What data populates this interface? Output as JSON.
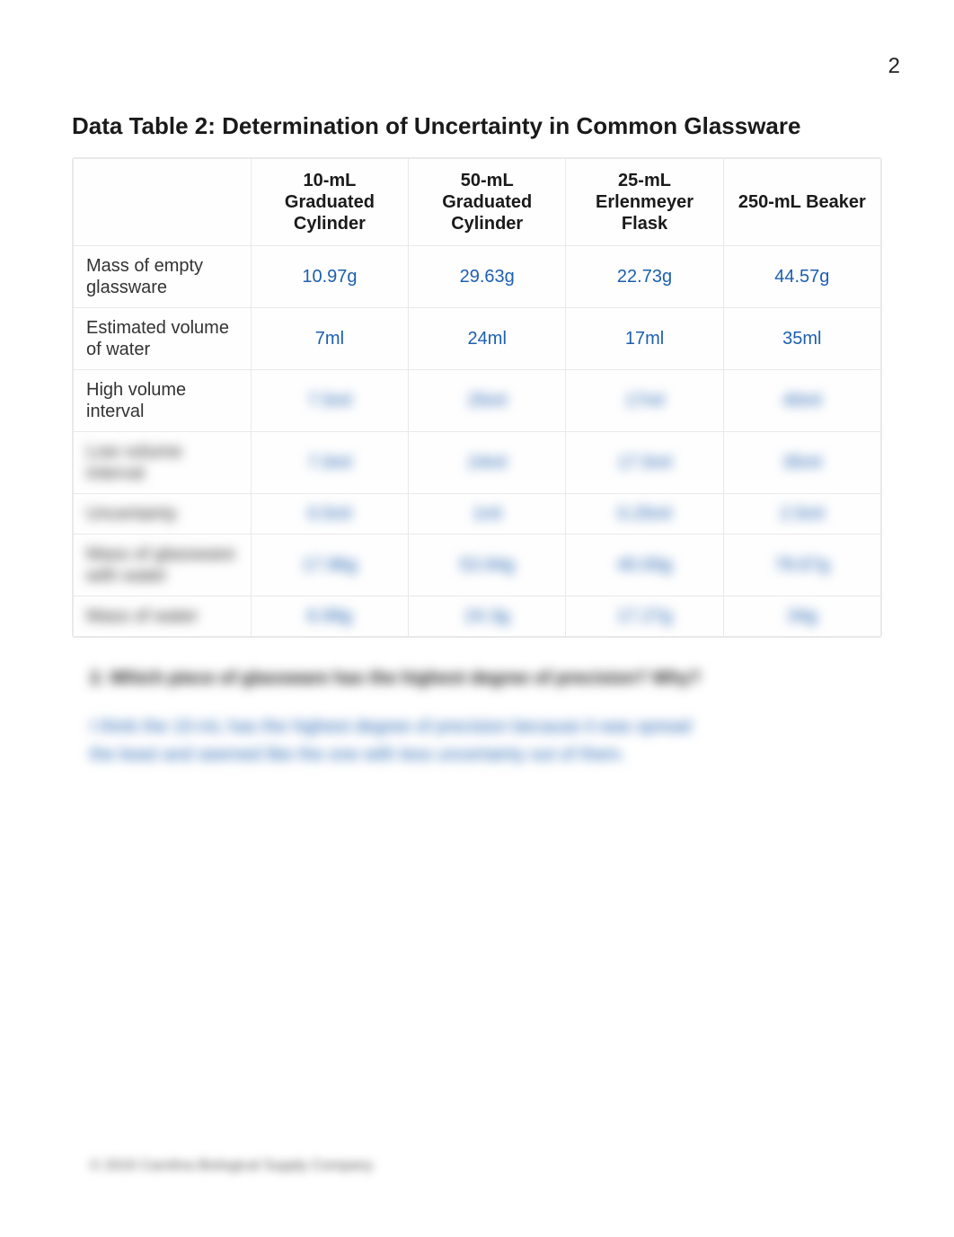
{
  "page_number": "2",
  "title": "Data Table 2: Determination of Uncertainty in Common Glassware",
  "table": {
    "columns": [
      "",
      "10-mL Graduated Cylinder",
      "50-mL Graduated Cylinder",
      "25-mL Erlenmeyer Flask",
      "250-mL Beaker"
    ],
    "rows": [
      {
        "label": "Mass of empty glassware",
        "blurred_label": false,
        "cells": [
          {
            "value": "10.97g",
            "blurred": false
          },
          {
            "value": "29.63g",
            "blurred": false
          },
          {
            "value": "22.73g",
            "blurred": false
          },
          {
            "value": "44.57g",
            "blurred": false
          }
        ]
      },
      {
        "label": "Estimated volume of water",
        "blurred_label": false,
        "cells": [
          {
            "value": "7ml",
            "blurred": false
          },
          {
            "value": "24ml",
            "blurred": false
          },
          {
            "value": "17ml",
            "blurred": false
          },
          {
            "value": "35ml",
            "blurred": false
          }
        ]
      },
      {
        "label": "High volume interval",
        "blurred_label": false,
        "cells": [
          {
            "value": "7.5ml",
            "blurred": true
          },
          {
            "value": "25ml",
            "blurred": true
          },
          {
            "value": "17ml",
            "blurred": true
          },
          {
            "value": "40ml",
            "blurred": true
          }
        ]
      },
      {
        "label": "Low volume interval",
        "blurred_label": true,
        "cells": [
          {
            "value": "7.0ml",
            "blurred": true
          },
          {
            "value": "24ml",
            "blurred": true
          },
          {
            "value": "17.5ml",
            "blurred": true
          },
          {
            "value": "35ml",
            "blurred": true
          }
        ]
      },
      {
        "label": "Uncertainty",
        "blurred_label": true,
        "cells": [
          {
            "value": "0.5ml",
            "blurred": true
          },
          {
            "value": "1ml",
            "blurred": true
          },
          {
            "value": "0.25ml",
            "blurred": true
          },
          {
            "value": "2.5ml",
            "blurred": true
          }
        ]
      },
      {
        "label": "Mass of glassware with water",
        "blurred_label": true,
        "cells": [
          {
            "value": "17.96g",
            "blurred": true
          },
          {
            "value": "53.94g",
            "blurred": true
          },
          {
            "value": "40.00g",
            "blurred": true
          },
          {
            "value": "78.67g",
            "blurred": true
          }
        ]
      },
      {
        "label": "Mass of water",
        "blurred_label": true,
        "cells": [
          {
            "value": "6.99g",
            "blurred": true
          },
          {
            "value": "24.3g",
            "blurred": true
          },
          {
            "value": "17.27g",
            "blurred": true
          },
          {
            "value": "34g",
            "blurred": true
          }
        ]
      }
    ]
  },
  "question": {
    "number": "2.",
    "text": "Which piece of glassware has the highest degree of precision? Why?"
  },
  "answer": "I think the 10-mL has the highest degree of precision because it was spread the least and seemed like the one with less uncertainty out of them.",
  "footer": "© 2016 Carolina Biological Supply Company",
  "colors": {
    "text": "#222222",
    "value": "#1d5fb0",
    "border": "#e9e9e9",
    "background": "#ffffff"
  }
}
